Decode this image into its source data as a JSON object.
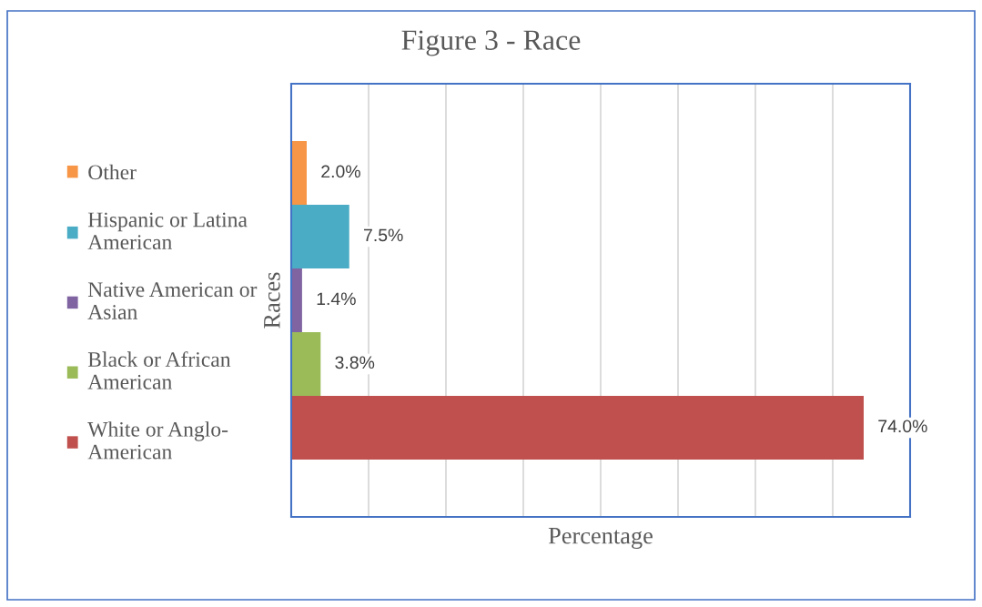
{
  "chart_data": {
    "type": "bar",
    "orientation": "horizontal",
    "title": "Figure 3 - Race",
    "xlabel": "Percentage",
    "ylabel": "Races",
    "categories": [
      null
    ],
    "series": [
      {
        "name": "Other",
        "color": "#f79646",
        "values": [
          2.0
        ],
        "value_labels": [
          "2.0%"
        ]
      },
      {
        "name": "Hispanic or Latina\nAmerican",
        "color": "#4bacc6",
        "values": [
          7.5
        ],
        "value_labels": [
          "7.5%"
        ]
      },
      {
        "name": "Native American or\nAsian",
        "color": "#8064a2",
        "values": [
          1.4
        ],
        "value_labels": [
          "1.4%"
        ]
      },
      {
        "name": "Black or African\nAmerican",
        "color": "#9bbb59",
        "values": [
          3.8
        ],
        "value_labels": [
          "3.8%"
        ]
      },
      {
        "name": "White or Anglo-\nAmerican",
        "color": "#c0504d",
        "values": [
          74.0
        ],
        "value_labels": [
          "74.0%"
        ]
      }
    ],
    "xlim": [
      0,
      80
    ],
    "xticks": [
      {
        "value": 10,
        "label": null
      },
      {
        "value": 20,
        "label": null
      },
      {
        "value": 30,
        "label": null
      },
      {
        "value": 40,
        "label": null
      },
      {
        "value": 50,
        "label": null
      },
      {
        "value": 60,
        "label": null
      },
      {
        "value": 70,
        "label": null
      }
    ],
    "grid": "x",
    "legend": "left",
    "tick_labels": false
  }
}
